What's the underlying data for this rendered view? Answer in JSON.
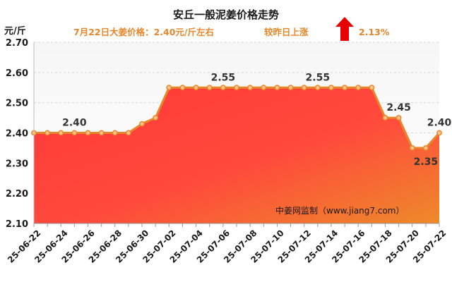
{
  "chart_data": {
    "type": "area",
    "title": "安丘一般泥姜价格走势",
    "subtitle_price": "7月22日大姜价格：2.40元/斤左右",
    "subtitle_change": "较昨日上涨",
    "change_percent": "2.13%",
    "change_direction": "up",
    "ylabel": "元/斤",
    "ylim": [
      2.1,
      2.7
    ],
    "yticks": [
      "2.70",
      "2.60",
      "2.50",
      "2.40",
      "2.30",
      "2.20",
      "2.10"
    ],
    "x": [
      "25-06-22",
      "25-06-23",
      "25-06-24",
      "25-06-25",
      "25-06-26",
      "25-06-27",
      "25-06-28",
      "25-06-29",
      "25-06-30",
      "25-07-01",
      "25-07-02",
      "25-07-03",
      "25-07-04",
      "25-07-05",
      "25-07-06",
      "25-07-07",
      "25-07-08",
      "25-07-09",
      "25-07-10",
      "25-07-11",
      "25-07-12",
      "25-07-13",
      "25-07-14",
      "25-07-15",
      "25-07-16",
      "25-07-17",
      "25-07-18",
      "25-07-19",
      "25-07-20",
      "25-07-21",
      "25-07-22"
    ],
    "xtick_labels": [
      "25-06-22",
      "25-06-24",
      "25-06-26",
      "25-06-28",
      "25-06-30",
      "25-07-02",
      "25-07-04",
      "25-07-06",
      "25-07-08",
      "25-07-10",
      "25-07-12",
      "25-07-14",
      "25-07-16",
      "25-07-18",
      "25-07-20",
      "25-07-22"
    ],
    "values": [
      2.4,
      2.4,
      2.4,
      2.4,
      2.4,
      2.4,
      2.4,
      2.4,
      2.43,
      2.45,
      2.55,
      2.55,
      2.55,
      2.55,
      2.55,
      2.55,
      2.55,
      2.55,
      2.55,
      2.55,
      2.55,
      2.55,
      2.55,
      2.55,
      2.55,
      2.55,
      2.45,
      2.45,
      2.35,
      2.35,
      2.4
    ],
    "data_labels": [
      {
        "index": 3,
        "text": "2.40",
        "pos": "above"
      },
      {
        "index": 14,
        "text": "2.55",
        "pos": "above"
      },
      {
        "index": 21,
        "text": "2.55",
        "pos": "above"
      },
      {
        "index": 27,
        "text": "2.45",
        "pos": "above"
      },
      {
        "index": 29,
        "text": "2.35",
        "pos": "below"
      },
      {
        "index": 30,
        "text": "2.40",
        "pos": "above"
      }
    ],
    "grid": true,
    "watermark": "中姜网监制（www.jiang7.com）",
    "colors": {
      "line": "#e8862a",
      "fill_top": "#ff3b3b",
      "fill_bottom": "#ee7d2e",
      "bg_top": "#f7f7f7",
      "bg_bottom": "#ffffff",
      "arrow": "#e60000"
    }
  }
}
